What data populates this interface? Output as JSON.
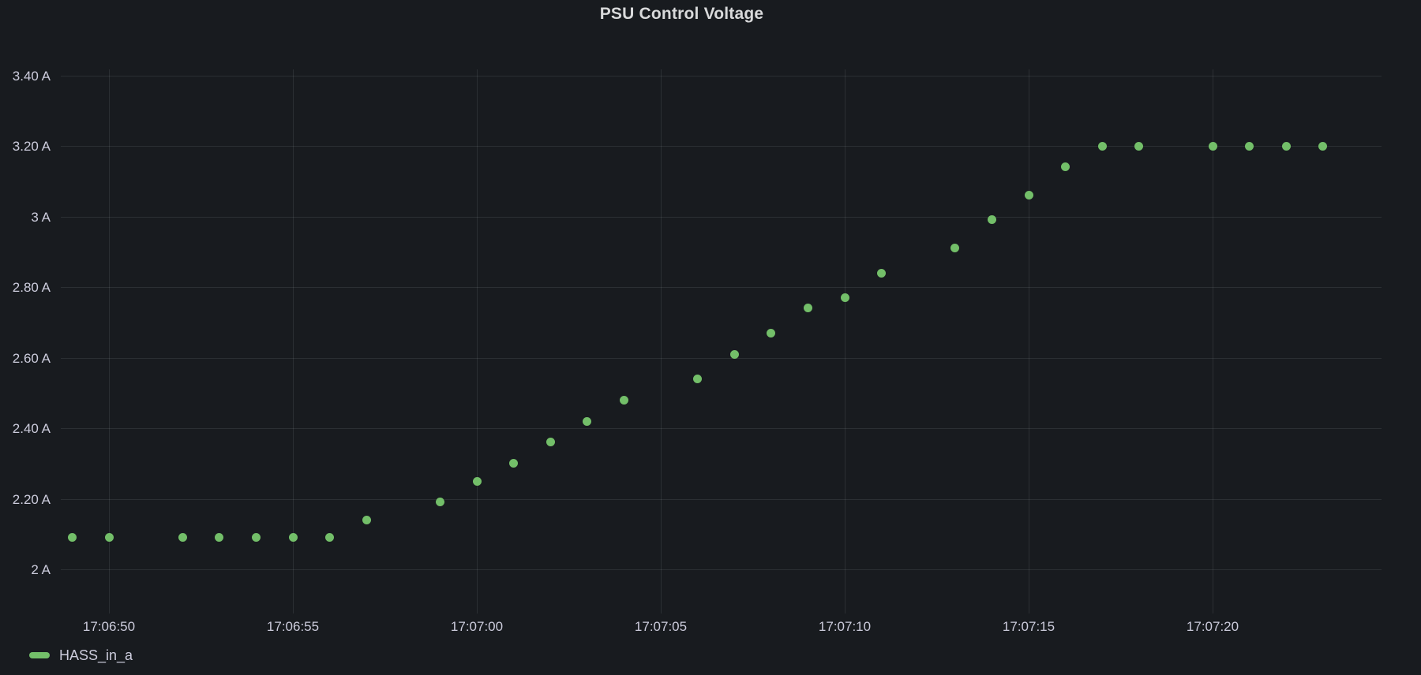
{
  "panel": {
    "title": "PSU Control Voltage"
  },
  "legend": {
    "series_label": "HASS_in_a"
  },
  "colors": {
    "background": "#181b1f",
    "series_green": "#73bf69",
    "text": "#ccccdc",
    "title_text": "#d8d9da",
    "gridline": "rgba(240,250,255,0.09)"
  },
  "chart_data": {
    "type": "scatter",
    "title": "PSU Control Voltage",
    "xlabel": "",
    "ylabel": "",
    "unit": "A",
    "grid": true,
    "legend_position": "bottom-left",
    "x_ticks": [
      "17:06:50",
      "17:06:55",
      "17:07:00",
      "17:07:05",
      "17:07:10",
      "17:07:15",
      "17:07:20"
    ],
    "y_ticks": [
      {
        "value": 3.4,
        "label": "3.40 A"
      },
      {
        "value": 3.2,
        "label": "3.20 A"
      },
      {
        "value": 3.0,
        "label": "3 A"
      },
      {
        "value": 2.8,
        "label": "2.80 A"
      },
      {
        "value": 2.6,
        "label": "2.60 A"
      },
      {
        "value": 2.4,
        "label": "2.40 A"
      },
      {
        "value": 2.2,
        "label": "2.20 A"
      },
      {
        "value": 2.0,
        "label": "2 A"
      }
    ],
    "ylim": [
      1.92,
      3.42
    ],
    "series": [
      {
        "name": "HASS_in_a",
        "color": "#73bf69",
        "points": [
          {
            "t": "17:06:49",
            "v": 2.09
          },
          {
            "t": "17:06:50",
            "v": 2.09
          },
          {
            "t": "17:06:52",
            "v": 2.09
          },
          {
            "t": "17:06:53",
            "v": 2.09
          },
          {
            "t": "17:06:54",
            "v": 2.09
          },
          {
            "t": "17:06:55",
            "v": 2.09
          },
          {
            "t": "17:06:56",
            "v": 2.09
          },
          {
            "t": "17:06:57",
            "v": 2.14
          },
          {
            "t": "17:06:59",
            "v": 2.19
          },
          {
            "t": "17:07:00",
            "v": 2.25
          },
          {
            "t": "17:07:01",
            "v": 2.3
          },
          {
            "t": "17:07:02",
            "v": 2.36
          },
          {
            "t": "17:07:03",
            "v": 2.42
          },
          {
            "t": "17:07:04",
            "v": 2.48
          },
          {
            "t": "17:07:06",
            "v": 2.54
          },
          {
            "t": "17:07:07",
            "v": 2.61
          },
          {
            "t": "17:07:08",
            "v": 2.67
          },
          {
            "t": "17:07:09",
            "v": 2.74
          },
          {
            "t": "17:07:10",
            "v": 2.77
          },
          {
            "t": "17:07:11",
            "v": 2.84
          },
          {
            "t": "17:07:13",
            "v": 2.91
          },
          {
            "t": "17:07:14",
            "v": 2.99
          },
          {
            "t": "17:07:15",
            "v": 3.06
          },
          {
            "t": "17:07:16",
            "v": 3.14
          },
          {
            "t": "17:07:17",
            "v": 3.2
          },
          {
            "t": "17:07:18",
            "v": 3.2
          },
          {
            "t": "17:07:20",
            "v": 3.2
          },
          {
            "t": "17:07:21",
            "v": 3.2
          },
          {
            "t": "17:07:22",
            "v": 3.2
          },
          {
            "t": "17:07:23",
            "v": 3.2
          }
        ]
      }
    ]
  }
}
